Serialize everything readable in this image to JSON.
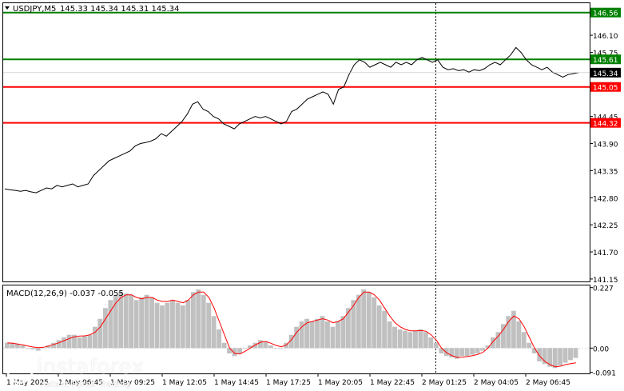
{
  "header": {
    "symbol": "USDJPY,M5",
    "ohlc": "145.33 145.34 145.31 145.34"
  },
  "macd_label": "MACD(12,26,9) -0.037 -0.055",
  "watermark": {
    "brand": "instaforex",
    "tagline": "Instant Forex Trading"
  },
  "colors": {
    "price_line": "#000000",
    "support": "#ff0000",
    "resistance": "#008000",
    "histogram": "#c0c0c0",
    "signal": "#ff0000",
    "current_price_box": "#000000"
  },
  "chart_data": [
    {
      "type": "line",
      "panel": "price",
      "ylim": [
        141.1,
        146.75
      ],
      "y_ticks": [
        "146.10",
        "145.75",
        "144.45",
        "143.90",
        "143.35",
        "142.80",
        "142.25",
        "141.70",
        "141.15"
      ],
      "x_tick_labels": [
        "1 May 2025",
        "1 May 06:45",
        "1 May 09:25",
        "1 May 12:05",
        "1 May 14:45",
        "1 May 17:25",
        "1 May 20:05",
        "1 May 22:45",
        "2 May 01:25",
        "2 May 04:05",
        "2 May 06:45"
      ],
      "current_price": {
        "label": "145.34",
        "value": 145.34
      },
      "levels": [
        {
          "label": "146.56",
          "value": 146.56,
          "kind": "resistance"
        },
        {
          "label": "145.61",
          "value": 145.61,
          "kind": "resistance"
        },
        {
          "label": "145.05",
          "value": 145.05,
          "kind": "support"
        },
        {
          "label": "144.32",
          "value": 144.32,
          "kind": "support"
        }
      ],
      "series": [
        {
          "values": [
            142.98,
            142.96,
            142.95,
            142.93,
            142.95,
            142.92,
            142.9,
            142.95,
            143.0,
            142.98,
            143.05,
            143.02,
            143.05,
            143.08,
            143.02,
            143.05,
            143.08,
            143.25,
            143.35,
            143.45,
            143.55,
            143.6,
            143.65,
            143.7,
            143.75,
            143.85,
            143.9,
            143.92,
            143.95,
            144.0,
            144.1,
            144.05,
            144.15,
            144.25,
            144.35,
            144.5,
            144.7,
            144.75,
            144.6,
            144.55,
            144.45,
            144.4,
            144.3,
            144.25,
            144.2,
            144.3,
            144.35,
            144.4,
            144.45,
            144.42,
            144.45,
            144.4,
            144.35,
            144.3,
            144.35,
            144.55,
            144.6,
            144.7,
            144.8,
            144.85,
            144.9,
            144.95,
            144.9,
            144.7,
            145.0,
            145.05,
            145.3,
            145.5,
            145.6,
            145.55,
            145.45,
            145.5,
            145.55,
            145.5,
            145.45,
            145.55,
            145.5,
            145.55,
            145.5,
            145.6,
            145.65,
            145.6,
            145.55,
            145.6,
            145.45,
            145.4,
            145.42,
            145.38,
            145.4,
            145.35,
            145.4,
            145.38,
            145.42,
            145.5,
            145.55,
            145.5,
            145.6,
            145.7,
            145.85,
            145.75,
            145.6,
            145.5,
            145.45,
            145.4,
            145.45,
            145.35,
            145.3,
            145.25,
            145.3,
            145.32,
            145.34
          ]
        }
      ]
    },
    {
      "type": "bar",
      "panel": "macd",
      "title": "MACD(12,26,9) -0.037 -0.055",
      "ylim": [
        -0.095,
        0.235
      ],
      "y_ticks": [
        "0.227",
        "0.00",
        "-0.091"
      ],
      "series": [
        {
          "kind": "histogram",
          "values": [
            0.02,
            0.02,
            0.015,
            0.01,
            0.0,
            -0.005,
            -0.01,
            0.0,
            0.01,
            0.02,
            0.03,
            0.04,
            0.05,
            0.05,
            0.04,
            0.045,
            0.05,
            0.08,
            0.11,
            0.15,
            0.18,
            0.2,
            0.21,
            0.205,
            0.2,
            0.18,
            0.19,
            0.2,
            0.19,
            0.17,
            0.16,
            0.17,
            0.18,
            0.17,
            0.16,
            0.18,
            0.21,
            0.22,
            0.2,
            0.17,
            0.12,
            0.07,
            0.02,
            -0.02,
            -0.03,
            -0.02,
            0.0,
            0.01,
            0.02,
            0.03,
            0.025,
            0.01,
            0.0,
            0.0,
            0.02,
            0.05,
            0.08,
            0.1,
            0.11,
            0.1,
            0.11,
            0.12,
            0.1,
            0.08,
            0.1,
            0.12,
            0.15,
            0.18,
            0.2,
            0.22,
            0.21,
            0.19,
            0.16,
            0.14,
            0.1,
            0.08,
            0.07,
            0.065,
            0.06,
            0.065,
            0.07,
            0.06,
            0.04,
            0.02,
            -0.02,
            -0.03,
            -0.035,
            -0.04,
            -0.03,
            -0.03,
            -0.025,
            -0.02,
            -0.01,
            0.01,
            0.04,
            0.06,
            0.09,
            0.12,
            0.14,
            0.1,
            0.06,
            0.02,
            -0.02,
            -0.05,
            -0.06,
            -0.07,
            -0.075,
            -0.065,
            -0.055,
            -0.045,
            -0.037
          ]
        },
        {
          "kind": "signal",
          "values": [
            0.02,
            0.018,
            0.015,
            0.012,
            0.008,
            0.004,
            0.002,
            0.003,
            0.008,
            0.014,
            0.02,
            0.028,
            0.036,
            0.042,
            0.045,
            0.046,
            0.05,
            0.06,
            0.08,
            0.11,
            0.14,
            0.17,
            0.19,
            0.2,
            0.2,
            0.19,
            0.185,
            0.19,
            0.19,
            0.18,
            0.175,
            0.175,
            0.18,
            0.175,
            0.17,
            0.18,
            0.2,
            0.21,
            0.21,
            0.19,
            0.15,
            0.1,
            0.05,
            0.0,
            -0.02,
            -0.022,
            -0.012,
            0.0,
            0.012,
            0.022,
            0.025,
            0.018,
            0.01,
            0.005,
            0.012,
            0.032,
            0.06,
            0.08,
            0.095,
            0.1,
            0.105,
            0.11,
            0.105,
            0.095,
            0.1,
            0.11,
            0.135,
            0.16,
            0.19,
            0.21,
            0.21,
            0.2,
            0.18,
            0.15,
            0.12,
            0.095,
            0.08,
            0.07,
            0.065,
            0.065,
            0.066,
            0.063,
            0.05,
            0.03,
            0.0,
            -0.018,
            -0.028,
            -0.035,
            -0.034,
            -0.032,
            -0.028,
            -0.024,
            -0.016,
            0.0,
            0.025,
            0.045,
            0.07,
            0.1,
            0.12,
            0.11,
            0.08,
            0.04,
            0.0,
            -0.03,
            -0.05,
            -0.062,
            -0.07,
            -0.068,
            -0.062,
            -0.058,
            -0.055
          ]
        }
      ]
    }
  ]
}
